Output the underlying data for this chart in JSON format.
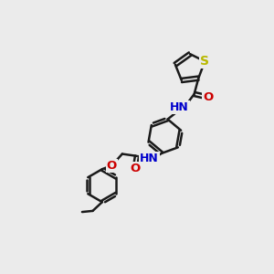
{
  "bg_color": "#ebebeb",
  "bond_color": "#1a1a1a",
  "bond_width": 1.8,
  "atom_colors": {
    "S": "#b8b800",
    "N": "#0000cc",
    "O": "#cc0000",
    "C": "#1a1a1a"
  },
  "figsize": [
    3.0,
    3.0
  ],
  "dpi": 100
}
